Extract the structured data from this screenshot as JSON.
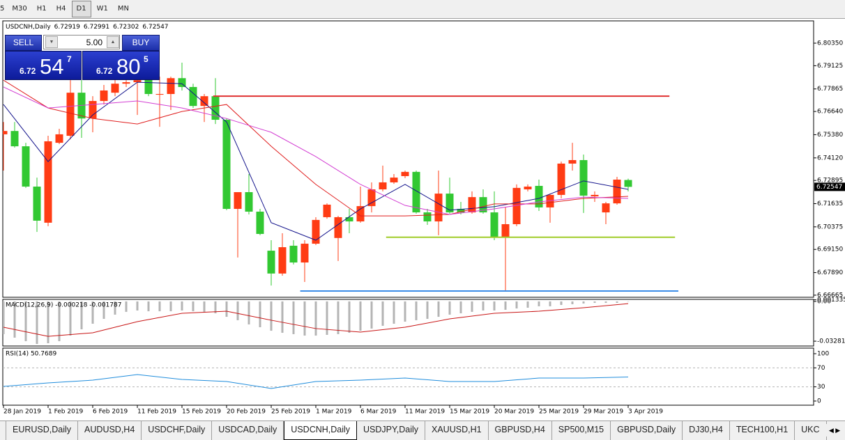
{
  "toolbar": [
    "5",
    "M30",
    "H1",
    "H4",
    "D1",
    "W1",
    "MN"
  ],
  "trade_panel": {
    "sell": "SELL",
    "lots": "5.00",
    "buy": "BUY",
    "bid": {
      "big": "6.72",
      "pips": "54",
      "point": "7"
    },
    "ask": {
      "big": "6.72",
      "pips": "80",
      "point": "5"
    }
  },
  "chart_data": [
    {
      "type": "candlestick",
      "title": "USDCNH,Daily",
      "categories": [
        "28 Jan 2019",
        null,
        null,
        null,
        "1 Feb 2019",
        null,
        null,
        null,
        "6 Feb 2019",
        null,
        null,
        null,
        "11 Feb 2019",
        null,
        null,
        null,
        "15 Feb 2019",
        null,
        null,
        null,
        "20 Feb 2019",
        null,
        null,
        null,
        "25 Feb 2019",
        null,
        null,
        null,
        "1 Mar 2019",
        null,
        null,
        null,
        "6 Mar 2019",
        null,
        null,
        null,
        "11 Mar 2019",
        null,
        null,
        null,
        "15 Mar 2019",
        null,
        null,
        null,
        "20 Mar 2019",
        null,
        null,
        null,
        "25 Mar 2019",
        null,
        null,
        null,
        "29 Mar 2019",
        null,
        null,
        null,
        "3 Apr 2019"
      ],
      "open": [
        6.754,
        6.7558,
        6.7475,
        6.7256,
        6.706,
        6.7494,
        6.7532,
        6.7766,
        6.7626,
        6.7721,
        6.7766,
        6.7815,
        6.7823,
        6.7842,
        6.7755,
        6.7759,
        6.7845,
        6.7797,
        6.7694,
        6.7747,
        6.7619,
        6.7135,
        6.7226,
        6.712,
        6.6908,
        6.6784,
        6.6935,
        6.6844,
        6.6946,
        6.709,
        6.6977,
        6.709,
        6.7067,
        6.715,
        6.7241,
        6.7279,
        6.7313,
        6.7336,
        6.7116,
        6.7067,
        6.7218,
        6.7135,
        6.7116,
        6.7199,
        6.7116,
        6.6984,
        6.7052,
        6.7241,
        6.726,
        6.7143,
        6.7211,
        6.7381,
        6.74,
        6.7203,
        6.7116,
        6.7165,
        6.72919
      ],
      "high": [
        6.7607,
        6.7607,
        6.7494,
        6.7305,
        6.7532,
        6.757,
        6.7834,
        6.7834,
        6.7747,
        6.7808,
        6.7853,
        6.7834,
        6.7891,
        6.7853,
        6.7853,
        6.7853,
        6.7929,
        6.7815,
        6.7759,
        6.7845,
        6.7626,
        6.7226,
        6.7324,
        6.7135,
        6.6965,
        6.7003,
        6.6965,
        6.6965,
        6.709,
        6.7165,
        6.7097,
        6.7135,
        6.7256,
        6.7279,
        6.737,
        6.7324,
        6.7343,
        6.7343,
        6.7135,
        6.7343,
        6.7305,
        6.7173,
        6.723,
        6.7241,
        6.723,
        6.7143,
        6.7268,
        6.7268,
        6.7294,
        6.7218,
        6.7392,
        6.7494,
        6.743,
        6.723,
        6.7173,
        6.7309,
        6.72991
      ],
      "low": [
        6.7343,
        6.7468,
        6.7249,
        6.701,
        6.7041,
        6.7487,
        6.7513,
        6.7521,
        6.7551,
        6.7702,
        6.7747,
        6.7797,
        6.7645,
        6.7747,
        6.7581,
        6.7672,
        6.7778,
        6.7683,
        6.7607,
        6.7596,
        6.7128,
        6.6871,
        6.7105,
        6.6992,
        6.6719,
        6.6772,
        6.6833,
        6.6738,
        6.6939,
        6.7082,
        6.6852,
        6.7003,
        6.706,
        6.7116,
        6.723,
        6.7271,
        6.7302,
        6.7109,
        6.7048,
        6.6992,
        6.7109,
        6.7105,
        6.7109,
        6.7109,
        6.6965,
        6.6689,
        6.7041,
        6.723,
        6.7124,
        6.706,
        6.7192,
        6.7343,
        6.7113,
        6.7173,
        6.7052,
        6.7158,
        6.72302
      ],
      "close": [
        6.7558,
        6.7475,
        6.7256,
        6.7071,
        6.7502,
        6.754,
        6.7766,
        6.7626,
        6.7721,
        6.7778,
        6.7815,
        6.7823,
        6.7834,
        6.7759,
        6.7759,
        6.7845,
        6.7797,
        6.7694,
        6.7747,
        6.7619,
        6.7135,
        6.7226,
        6.712,
        6.6999,
        6.6784,
        6.6927,
        6.6844,
        6.6946,
        6.7075,
        6.7158,
        6.709,
        6.7067,
        6.715,
        6.7241,
        6.7279,
        6.7305,
        6.7336,
        6.7116,
        6.7067,
        6.7218,
        6.7116,
        6.7116,
        6.7199,
        6.7116,
        6.6984,
        6.7052,
        6.7249,
        6.7256,
        6.7143,
        6.7211,
        6.7381,
        6.74,
        6.7207,
        6.7211,
        6.7165,
        6.7294,
        6.72547
      ],
      "up_color": "#ff3c14",
      "down_color": "#32c832",
      "overlays": [
        {
          "color": "#14148c",
          "x": [
            0,
            4,
            8,
            12,
            16,
            20,
            24,
            28,
            32,
            36,
            40,
            44,
            48,
            52,
            56
          ],
          "values": [
            6.7702,
            6.7392,
            6.7645,
            6.7823,
            6.7815,
            6.7607,
            6.706,
            6.6965,
            6.7135,
            6.7268,
            6.7128,
            6.7147,
            6.7192,
            6.7287,
            6.7241
          ]
        },
        {
          "color": "#e01e1e",
          "x": [
            0,
            4,
            8,
            12,
            16,
            20,
            24,
            28,
            32,
            36,
            40,
            44,
            48,
            52,
            56
          ],
          "values": [
            6.7834,
            6.7683,
            6.7626,
            6.7596,
            6.7664,
            6.7702,
            6.7475,
            6.7268,
            6.7097,
            6.7097,
            6.7105,
            6.7162,
            6.7162,
            6.7192,
            6.7203
          ]
        },
        {
          "color": "#d23cd2",
          "x": [
            0,
            4,
            8,
            12,
            16,
            20,
            24,
            28,
            32,
            36,
            40,
            44,
            48,
            52,
            56
          ],
          "values": [
            6.7797,
            6.7683,
            6.7702,
            6.7721,
            6.7683,
            6.7626,
            6.7551,
            6.7419,
            6.7268,
            6.7154,
            6.7105,
            6.7135,
            6.7173,
            6.7199,
            6.7192
          ]
        }
      ],
      "hlines": [
        {
          "value": 6.7747,
          "color": "#e03030",
          "x": [
            18.8,
            59.7
          ]
        },
        {
          "value": 6.6981,
          "color": "#a0cc28",
          "x": [
            34.3,
            60.2
          ]
        },
        {
          "value": 6.6689,
          "color": "#3c8ce6",
          "x": [
            26.6,
            60.5
          ]
        }
      ],
      "ylim": [
        6.6655,
        6.8156
      ],
      "yticks": [
        {
          "value": 6.8035,
          "label": "6.80350"
        },
        6.79125,
        6.77865,
        {
          "value": 6.7664,
          "label": "6.76640"
        },
        {
          "value": 6.7538,
          "label": "6.75380"
        },
        {
          "value": 6.7412,
          "label": "6.74120"
        },
        6.72895,
        6.71635,
        6.70375,
        {
          "value": 6.6915,
          "label": "6.69150"
        },
        {
          "value": 6.6789,
          "label": "6.67890"
        },
        6.66665
      ]
    },
    {
      "type": "bar",
      "title": "MACD(12,26,9) -0.000218 -0.001787",
      "color": "#b4b4b4",
      "values": [
        -0.027,
        -0.0299,
        -0.0328,
        -0.0351,
        -0.0345,
        -0.0328,
        -0.0282,
        -0.023,
        -0.0184,
        -0.0144,
        -0.0109,
        -0.0086,
        -0.0075,
        -0.0081,
        -0.0081,
        -0.0081,
        -0.0075,
        -0.0081,
        -0.0086,
        -0.0098,
        -0.0127,
        -0.0155,
        -0.019,
        -0.0213,
        -0.0242,
        -0.0259,
        -0.027,
        -0.0282,
        -0.0282,
        -0.0276,
        -0.027,
        -0.0259,
        -0.0242,
        -0.0224,
        -0.0201,
        -0.0184,
        -0.0167,
        -0.0155,
        -0.0144,
        -0.0127,
        -0.0109,
        -0.0098,
        -0.0086,
        -0.0075,
        -0.0075,
        -0.0069,
        -0.0058,
        -0.0052,
        -0.004,
        -0.004,
        -0.0029,
        -0.0023,
        -0.0017,
        -0.0012,
        -0.0012,
        -0.0012,
        -0.0002
      ],
      "signal": {
        "color": "#c81414",
        "x": [
          0,
          4,
          8,
          12,
          16,
          20,
          24,
          28,
          32,
          36,
          40,
          44,
          48,
          52,
          56
        ],
        "values": [
          -0.0213,
          -0.0288,
          -0.0259,
          -0.0167,
          -0.0098,
          -0.0081,
          -0.0155,
          -0.0224,
          -0.0253,
          -0.0213,
          -0.0144,
          -0.0098,
          -0.0081,
          -0.0052,
          -0.0018
        ]
      },
      "ylim": [
        -0.0368,
        0.0017
      ],
      "yticks": [
        {
          "value": 0,
          "label": "0.00"
        },
        0.001335,
        -0.032812
      ]
    },
    {
      "type": "line",
      "title": "RSI(14) 50.7689",
      "color": "#1e8cdc",
      "x": [
        0,
        4,
        8,
        12,
        16,
        20,
        24,
        28,
        32,
        36,
        40,
        44,
        48,
        52,
        56
      ],
      "values": [
        30.9,
        38.2,
        44.1,
        55.9,
        45.6,
        41.2,
        26.5,
        41.2,
        44.1,
        48.5,
        41.2,
        41.2,
        48.5,
        48.5,
        50.8
      ],
      "levels": [
        70,
        30
      ],
      "ylim": [
        -8.8,
        111.8
      ],
      "yticks": [
        100,
        70,
        30,
        0
      ]
    }
  ],
  "tabs": [
    "EURUSD,Daily",
    "AUDUSD,H4",
    "USDCHF,Daily",
    "USDCAD,Daily",
    "USDCNH,Daily",
    "USDJPY,Daily",
    "XAUUSD,H1",
    "GBPUSD,H4",
    "SP500,M15",
    "GBPUSD,Daily",
    "DJ30,H4",
    "TECH100,H1",
    "UKC"
  ]
}
